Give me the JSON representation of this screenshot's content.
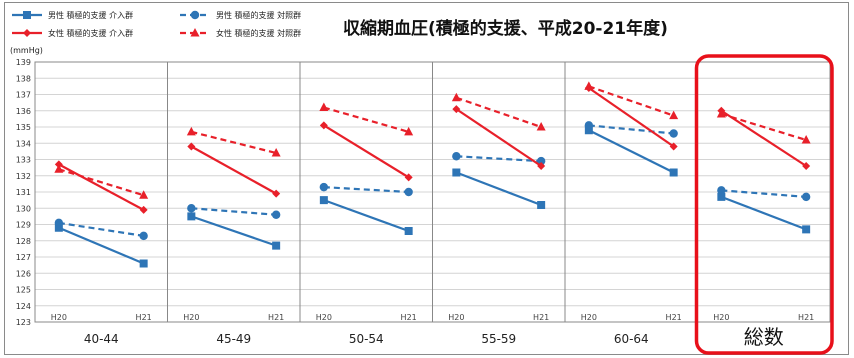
{
  "chart_data": {
    "type": "line",
    "title": "収縮期血圧(積極的支援、平成20-21年度)",
    "unit": "(mmHg)",
    "ylim": [
      123,
      139
    ],
    "yticks": [
      123,
      124,
      125,
      126,
      127,
      128,
      129,
      130,
      131,
      132,
      133,
      134,
      135,
      136,
      137,
      138,
      139
    ],
    "grid": true,
    "legend_position": "top-left",
    "x_ticks": [
      "H20",
      "H21"
    ],
    "groups": [
      "40-44",
      "45-49",
      "50-54",
      "55-59",
      "60-64",
      "総数"
    ],
    "highlighted_group": "総数",
    "series": [
      {
        "name": "男性 積極的支援 介入群",
        "color": "#2e75b6",
        "dash": false,
        "marker": "square",
        "values": [
          [
            128.8,
            126.6
          ],
          [
            129.5,
            127.7
          ],
          [
            130.5,
            128.6
          ],
          [
            132.2,
            130.2
          ],
          [
            134.8,
            132.2
          ],
          [
            130.7,
            128.7
          ]
        ]
      },
      {
        "name": "男性 積極的支援 対照群",
        "color": "#2e75b6",
        "dash": true,
        "marker": "circle",
        "values": [
          [
            129.1,
            128.3
          ],
          [
            130.0,
            129.6
          ],
          [
            131.3,
            131.0
          ],
          [
            133.2,
            132.9
          ],
          [
            135.1,
            134.6
          ],
          [
            131.1,
            130.7
          ]
        ]
      },
      {
        "name": "女性 積極的支援 介入群",
        "color": "#e8202a",
        "dash": false,
        "marker": "diamond",
        "values": [
          [
            132.7,
            129.9
          ],
          [
            133.8,
            130.9
          ],
          [
            135.1,
            131.9
          ],
          [
            136.1,
            132.6
          ],
          [
            137.4,
            133.8
          ],
          [
            136.0,
            132.6
          ]
        ]
      },
      {
        "name": "女性 積極的支援 対照群",
        "color": "#e8202a",
        "dash": true,
        "marker": "triangle",
        "values": [
          [
            132.4,
            130.8
          ],
          [
            134.7,
            133.4
          ],
          [
            136.2,
            134.7
          ],
          [
            136.8,
            135.0
          ],
          [
            137.5,
            135.7
          ],
          [
            135.8,
            134.2
          ]
        ]
      }
    ]
  }
}
